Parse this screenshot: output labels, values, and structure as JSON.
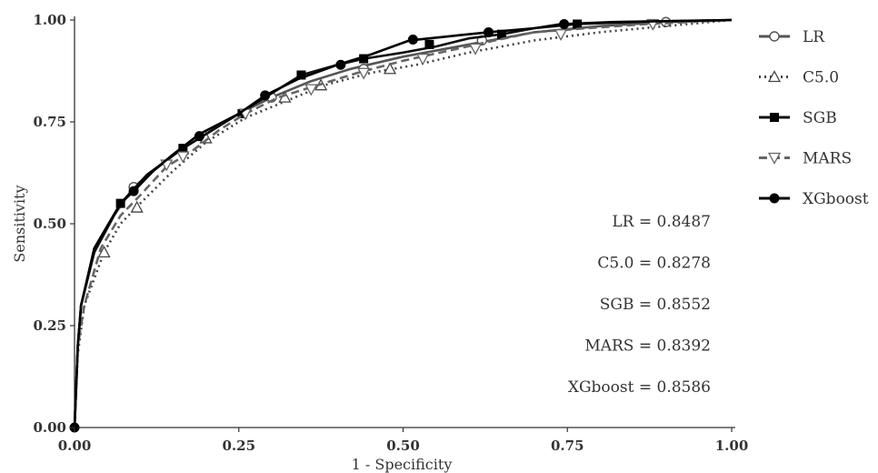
{
  "chart_data": {
    "type": "line",
    "title": "",
    "xlabel": "1 - Specificity",
    "ylabel": "Sensitivity",
    "xlim": [
      0,
      1
    ],
    "ylim": [
      0,
      1
    ],
    "x_ticks": [
      "0.00",
      "0.25",
      "0.50",
      "0.75",
      "1.00"
    ],
    "y_ticks": [
      "0.00",
      "0.25",
      "0.50",
      "0.75",
      "1.00"
    ],
    "grid": false,
    "legend_position": "right",
    "series": [
      {
        "name": "LR",
        "marker": "circle-open",
        "line_style": "solid",
        "color": "#555555",
        "points": [
          [
            0,
            0
          ],
          [
            0.005,
            0.2
          ],
          [
            0.01,
            0.3
          ],
          [
            0.03,
            0.43
          ],
          [
            0.06,
            0.52
          ],
          [
            0.09,
            0.59
          ],
          [
            0.12,
            0.63
          ],
          [
            0.16,
            0.68
          ],
          [
            0.2,
            0.72
          ],
          [
            0.25,
            0.77
          ],
          [
            0.3,
            0.81
          ],
          [
            0.36,
            0.85
          ],
          [
            0.42,
            0.88
          ],
          [
            0.5,
            0.91
          ],
          [
            0.6,
            0.94
          ],
          [
            0.7,
            0.97
          ],
          [
            0.8,
            0.985
          ],
          [
            0.9,
            0.995
          ],
          [
            1,
            1
          ]
        ],
        "marker_points": [
          [
            0.09,
            0.59
          ],
          [
            0.3,
            0.81
          ],
          [
            0.44,
            0.88
          ],
          [
            0.62,
            0.95
          ],
          [
            0.9,
            0.995
          ]
        ]
      },
      {
        "name": "C5.0",
        "marker": "triangle-open",
        "line_style": "dotted",
        "color": "#444444",
        "points": [
          [
            0,
            0
          ],
          [
            0.005,
            0.18
          ],
          [
            0.015,
            0.3
          ],
          [
            0.045,
            0.43
          ],
          [
            0.07,
            0.5
          ],
          [
            0.1,
            0.55
          ],
          [
            0.15,
            0.63
          ],
          [
            0.2,
            0.7
          ],
          [
            0.26,
            0.76
          ],
          [
            0.32,
            0.8
          ],
          [
            0.38,
            0.84
          ],
          [
            0.45,
            0.87
          ],
          [
            0.52,
            0.89
          ],
          [
            0.6,
            0.92
          ],
          [
            0.7,
            0.95
          ],
          [
            0.8,
            0.97
          ],
          [
            0.9,
            0.985
          ],
          [
            1,
            1
          ]
        ],
        "marker_points": [
          [
            0.045,
            0.43
          ],
          [
            0.095,
            0.54
          ],
          [
            0.2,
            0.71
          ],
          [
            0.32,
            0.81
          ],
          [
            0.375,
            0.84
          ],
          [
            0.48,
            0.88
          ]
        ]
      },
      {
        "name": "SGB",
        "marker": "square-filled",
        "line_style": "solid",
        "color": "#111111",
        "points": [
          [
            0,
            0
          ],
          [
            0.005,
            0.2
          ],
          [
            0.01,
            0.3
          ],
          [
            0.03,
            0.43
          ],
          [
            0.07,
            0.55
          ],
          [
            0.11,
            0.62
          ],
          [
            0.165,
            0.685
          ],
          [
            0.21,
            0.73
          ],
          [
            0.26,
            0.78
          ],
          [
            0.3,
            0.82
          ],
          [
            0.345,
            0.865
          ],
          [
            0.4,
            0.89
          ],
          [
            0.44,
            0.905
          ],
          [
            0.5,
            0.92
          ],
          [
            0.55,
            0.935
          ],
          [
            0.6,
            0.955
          ],
          [
            0.65,
            0.965
          ],
          [
            0.7,
            0.98
          ],
          [
            0.765,
            0.99
          ],
          [
            0.85,
            0.995
          ],
          [
            1,
            1
          ]
        ],
        "marker_points": [
          [
            0.07,
            0.55
          ],
          [
            0.165,
            0.685
          ],
          [
            0.255,
            0.77
          ],
          [
            0.345,
            0.865
          ],
          [
            0.44,
            0.905
          ],
          [
            0.54,
            0.94
          ],
          [
            0.65,
            0.965
          ],
          [
            0.765,
            0.99
          ]
        ]
      },
      {
        "name": "MARS",
        "marker": "triangle-down-open",
        "line_style": "dashed",
        "color": "#666666",
        "points": [
          [
            0,
            0
          ],
          [
            0.005,
            0.2
          ],
          [
            0.015,
            0.3
          ],
          [
            0.04,
            0.44
          ],
          [
            0.07,
            0.52
          ],
          [
            0.1,
            0.57
          ],
          [
            0.14,
            0.64
          ],
          [
            0.18,
            0.68
          ],
          [
            0.22,
            0.73
          ],
          [
            0.26,
            0.77
          ],
          [
            0.31,
            0.81
          ],
          [
            0.37,
            0.84
          ],
          [
            0.43,
            0.87
          ],
          [
            0.5,
            0.9
          ],
          [
            0.57,
            0.925
          ],
          [
            0.64,
            0.95
          ],
          [
            0.7,
            0.97
          ],
          [
            0.78,
            0.98
          ],
          [
            0.87,
            0.99
          ],
          [
            1,
            1
          ]
        ],
        "marker_points": [
          [
            0.14,
            0.645
          ],
          [
            0.165,
            0.665
          ],
          [
            0.26,
            0.77
          ],
          [
            0.36,
            0.83
          ],
          [
            0.44,
            0.87
          ],
          [
            0.53,
            0.905
          ],
          [
            0.61,
            0.93
          ],
          [
            0.74,
            0.965
          ],
          [
            0.88,
            0.99
          ]
        ]
      },
      {
        "name": "XGboost",
        "marker": "circle-filled",
        "line_style": "solid",
        "color": "#000000",
        "points": [
          [
            0,
            0
          ],
          [
            0.005,
            0.2
          ],
          [
            0.01,
            0.3
          ],
          [
            0.03,
            0.44
          ],
          [
            0.07,
            0.55
          ],
          [
            0.09,
            0.58
          ],
          [
            0.12,
            0.63
          ],
          [
            0.15,
            0.67
          ],
          [
            0.19,
            0.72
          ],
          [
            0.25,
            0.77
          ],
          [
            0.29,
            0.815
          ],
          [
            0.34,
            0.855
          ],
          [
            0.4,
            0.89
          ],
          [
            0.45,
            0.915
          ],
          [
            0.51,
            0.95
          ],
          [
            0.57,
            0.96
          ],
          [
            0.63,
            0.97
          ],
          [
            0.7,
            0.98
          ],
          [
            0.74,
            0.99
          ],
          [
            0.82,
            0.995
          ],
          [
            1,
            1
          ]
        ],
        "marker_points": [
          [
            0,
            0
          ],
          [
            0.09,
            0.58
          ],
          [
            0.19,
            0.715
          ],
          [
            0.29,
            0.815
          ],
          [
            0.405,
            0.89
          ],
          [
            0.515,
            0.952
          ],
          [
            0.63,
            0.97
          ],
          [
            0.745,
            0.99
          ]
        ]
      }
    ],
    "annotations": [
      "LR = 0.8487",
      "C5.0 = 0.8278",
      "SGB = 0.8552",
      "MARS = 0.8392",
      "XGboost = 0.8586"
    ]
  }
}
